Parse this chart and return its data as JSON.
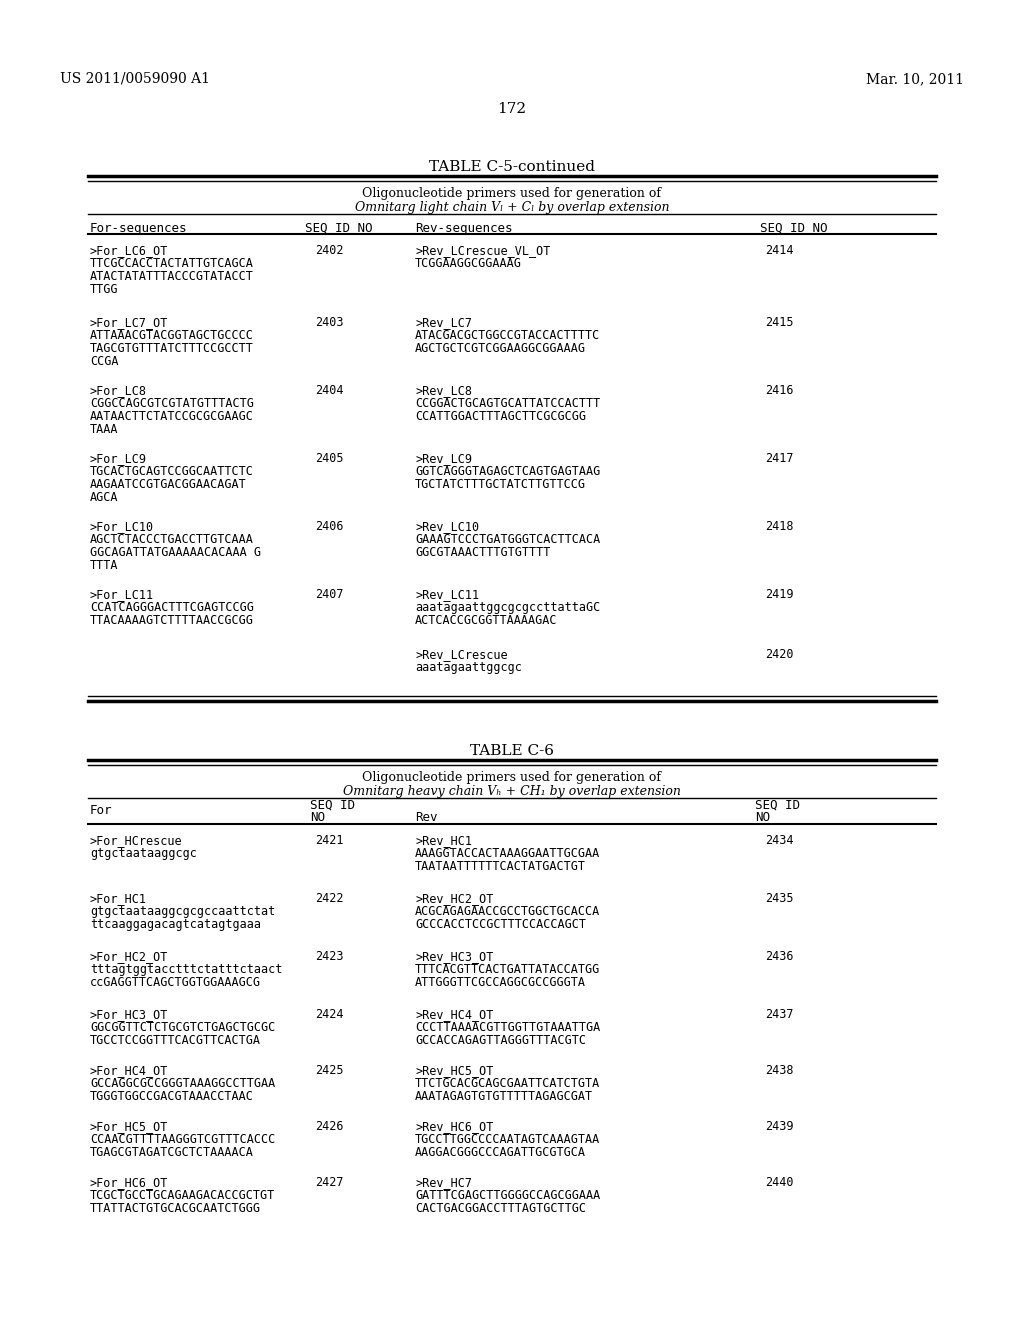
{
  "page_left": "US 2011/0059090 A1",
  "page_right": "Mar. 10, 2011",
  "page_number": "172",
  "table1_title": "TABLE C-5-continued",
  "table1_subtitle1": "Oligonucleotide primers used for generation of",
  "table1_subtitle2": "Omnitarg light chain Vₗ + Cₗ by overlap extension",
  "table1_col1": "For-sequences",
  "table1_col2": "SEQ ID NO",
  "table1_col3": "Rev-sequences",
  "table1_col4": "SEQ ID NO",
  "table1_rows": [
    {
      "for_name": ">For_LC6_OT",
      "for_seq": "TTCGCCACCTACTATTGTCAGCA\nATACTATATTTACCCGTATACCT\nTTGG",
      "seq_id_for": "2402",
      "rev_name": ">Rev_LCrescue_VL_OT",
      "rev_seq": "TCGGAAGGCGGAAAG",
      "seq_id_rev": "2414"
    },
    {
      "for_name": ">For_LC7_OT",
      "for_seq": "ATTAAACGTACGGTAGCTGCCCC\nTAGCGTGTTTATCTTTCCGCCTT\nCCGA",
      "seq_id_for": "2403",
      "rev_name": ">Rev_LC7",
      "rev_seq": "ATACGACGCTGGCCGTACCACTTTTC\nAGCTGCTCGTCGGAAGGCGGAAAG",
      "seq_id_rev": "2415"
    },
    {
      "for_name": ">For_LC8",
      "for_seq": "CGGCCAGCGTCGTATGTTTACTG\nAATAACTTCTATCCGCGCGAAGC\nTAAA",
      "seq_id_for": "2404",
      "rev_name": ">Rev_LC8",
      "rev_seq": "CCGGACTGCAGTGCATTATCCACTTT\nCCATTGGACTTTAGCTTCGCGCGG",
      "seq_id_rev": "2416"
    },
    {
      "for_name": ">For_LC9",
      "for_seq": "TGCACTGCAGTCCGGCAATTCTC\nAAGAATCCGTGACGGAACAGAT\nAGCA",
      "seq_id_for": "2405",
      "rev_name": ">Rev_LC9",
      "rev_seq": "GGTCAGGGTAGAGCTCAGTGAGTAAG\nTGCTATCTTTGCTATCTTGTTCCG",
      "seq_id_rev": "2417"
    },
    {
      "for_name": ">For_LC10",
      "for_seq": "AGCTCTACCCTGACCTTGTCAAA\nGGCAGATTATGAAAAACACAAA G\nTTTA",
      "seq_id_for": "2406",
      "rev_name": ">Rev_LC10",
      "rev_seq": "GAAAGTCCCTGATGGGTCACTTCACA\nGGCGTAAACTTTGTGTTTT",
      "seq_id_rev": "2418"
    },
    {
      "for_name": ">For_LC11",
      "for_seq": "CCATCAGGGACTTTCGAGTCCGG\nTTACAAAAGTCTTTTAACCGCGG",
      "seq_id_for": "2407",
      "rev_name": ">Rev_LC11",
      "rev_seq": "aaatagaattggcgcgccttattaGC\nACTCACCGCGGTTAAAAGAC",
      "seq_id_rev": "2419"
    },
    {
      "for_name": "",
      "for_seq": "",
      "seq_id_for": "",
      "rev_name": ">Rev_LCrescue",
      "rev_seq": "aaatagaattggcgc",
      "seq_id_rev": "2420"
    }
  ],
  "table2_title": "TABLE C-6",
  "table2_subtitle1": "Oligonucleotide primers used for generation of",
  "table2_subtitle2": "Omnitarg heavy chain V_H + CH_1 by overlap extension",
  "table2_col1": "For",
  "table2_col2a": "SEQ ID",
  "table2_col2b": "NO",
  "table2_col3": "Rev",
  "table2_col4a": "SEQ ID",
  "table2_col4b": "NO",
  "table2_rows": [
    {
      "for_name": ">For_HCrescue",
      "for_seq": "gtgctaataaggcgc",
      "seq_id_for": "2421",
      "rev_name": ">Rev_HC1",
      "rev_seq": "AAAGGTACCACTAAAGGAATTGCGAA\nTAATAATTTTTTCACTATGACTGT",
      "seq_id_rev": "2434"
    },
    {
      "for_name": ">For_HC1",
      "for_seq": "gtgctaataaggcgcgccaattctat\nttcaaggagacagtcatagtgaaa",
      "seq_id_for": "2422",
      "rev_name": ">Rev_HC2_OT",
      "rev_seq": "ACGCAGAGAACCGCCTGGCTGCACCA\nGCCCACCTCCGCTTTCCACCAGCT",
      "seq_id_rev": "2435"
    },
    {
      "for_name": ">For_HC2_OT",
      "for_seq": "tttagtggtacctttctatttctaact\nccGAGGTTCAGCTGGTGGAAAGCG",
      "seq_id_for": "2423",
      "rev_name": ">Rev_HC3_OT",
      "rev_seq": "TTTCACGTTCACTGATTATACCATGG\nATTGGGTTCGCCAGGCGCCGGGTA",
      "seq_id_rev": "2436"
    },
    {
      "for_name": ">For_HC3_OT",
      "for_seq": "GGCGGTTCTCTGCGTCTGAGCTGCGC\nTGCCTCCGGTTTCACGTTCACTGA",
      "seq_id_for": "2424",
      "rev_name": ">Rev_HC4_OT",
      "rev_seq": "CCCTTAAAACGTTGGTTGTAAATTGA\nGCCACCAGAGTTAGGGTTTACGTC",
      "seq_id_rev": "2437"
    },
    {
      "for_name": ">For_HC4_OT",
      "for_seq": "GCCAGGCGCCGGGTAAAGGCCTTGAA\nTGGGTGGCCGACGTAAACCTAAC",
      "seq_id_for": "2425",
      "rev_name": ">Rev_HC5_OT",
      "rev_seq": "TTCTGCACGCAGCGAATTCATCTGTA\nAAATAGAGTGTGTTTTTAGAGCGAT",
      "seq_id_rev": "2438"
    },
    {
      "for_name": ">For_HC5_OT",
      "for_seq": "CCAACGTTTTAAGGGTCGTTTCACCC\nTGAGCGTAGATCGCTCTAAAACA",
      "seq_id_for": "2426",
      "rev_name": ">Rev_HC6_OT",
      "rev_seq": "TGCCTTGGCCCCAATAGTCAAAGTAA\nAAGGACGGGCCCAGATTGCGTGCA",
      "seq_id_rev": "2439"
    },
    {
      "for_name": ">For_HC6_OT",
      "for_seq": "TCGCTGCCTGCAGAAGACACCGCTGT\nTTATTACTGTGCACGCAATCTGGG",
      "seq_id_for": "2427",
      "rev_name": ">Rev_HC7",
      "rev_seq": "GATTTCGAGCTTGGGGCCAGCGGAAA\nCACTGACGGACCTTTAGTGCTTGC",
      "seq_id_rev": "2440"
    }
  ],
  "bg_color": "#ffffff",
  "text_color": "#000000",
  "line_color": "#000000"
}
